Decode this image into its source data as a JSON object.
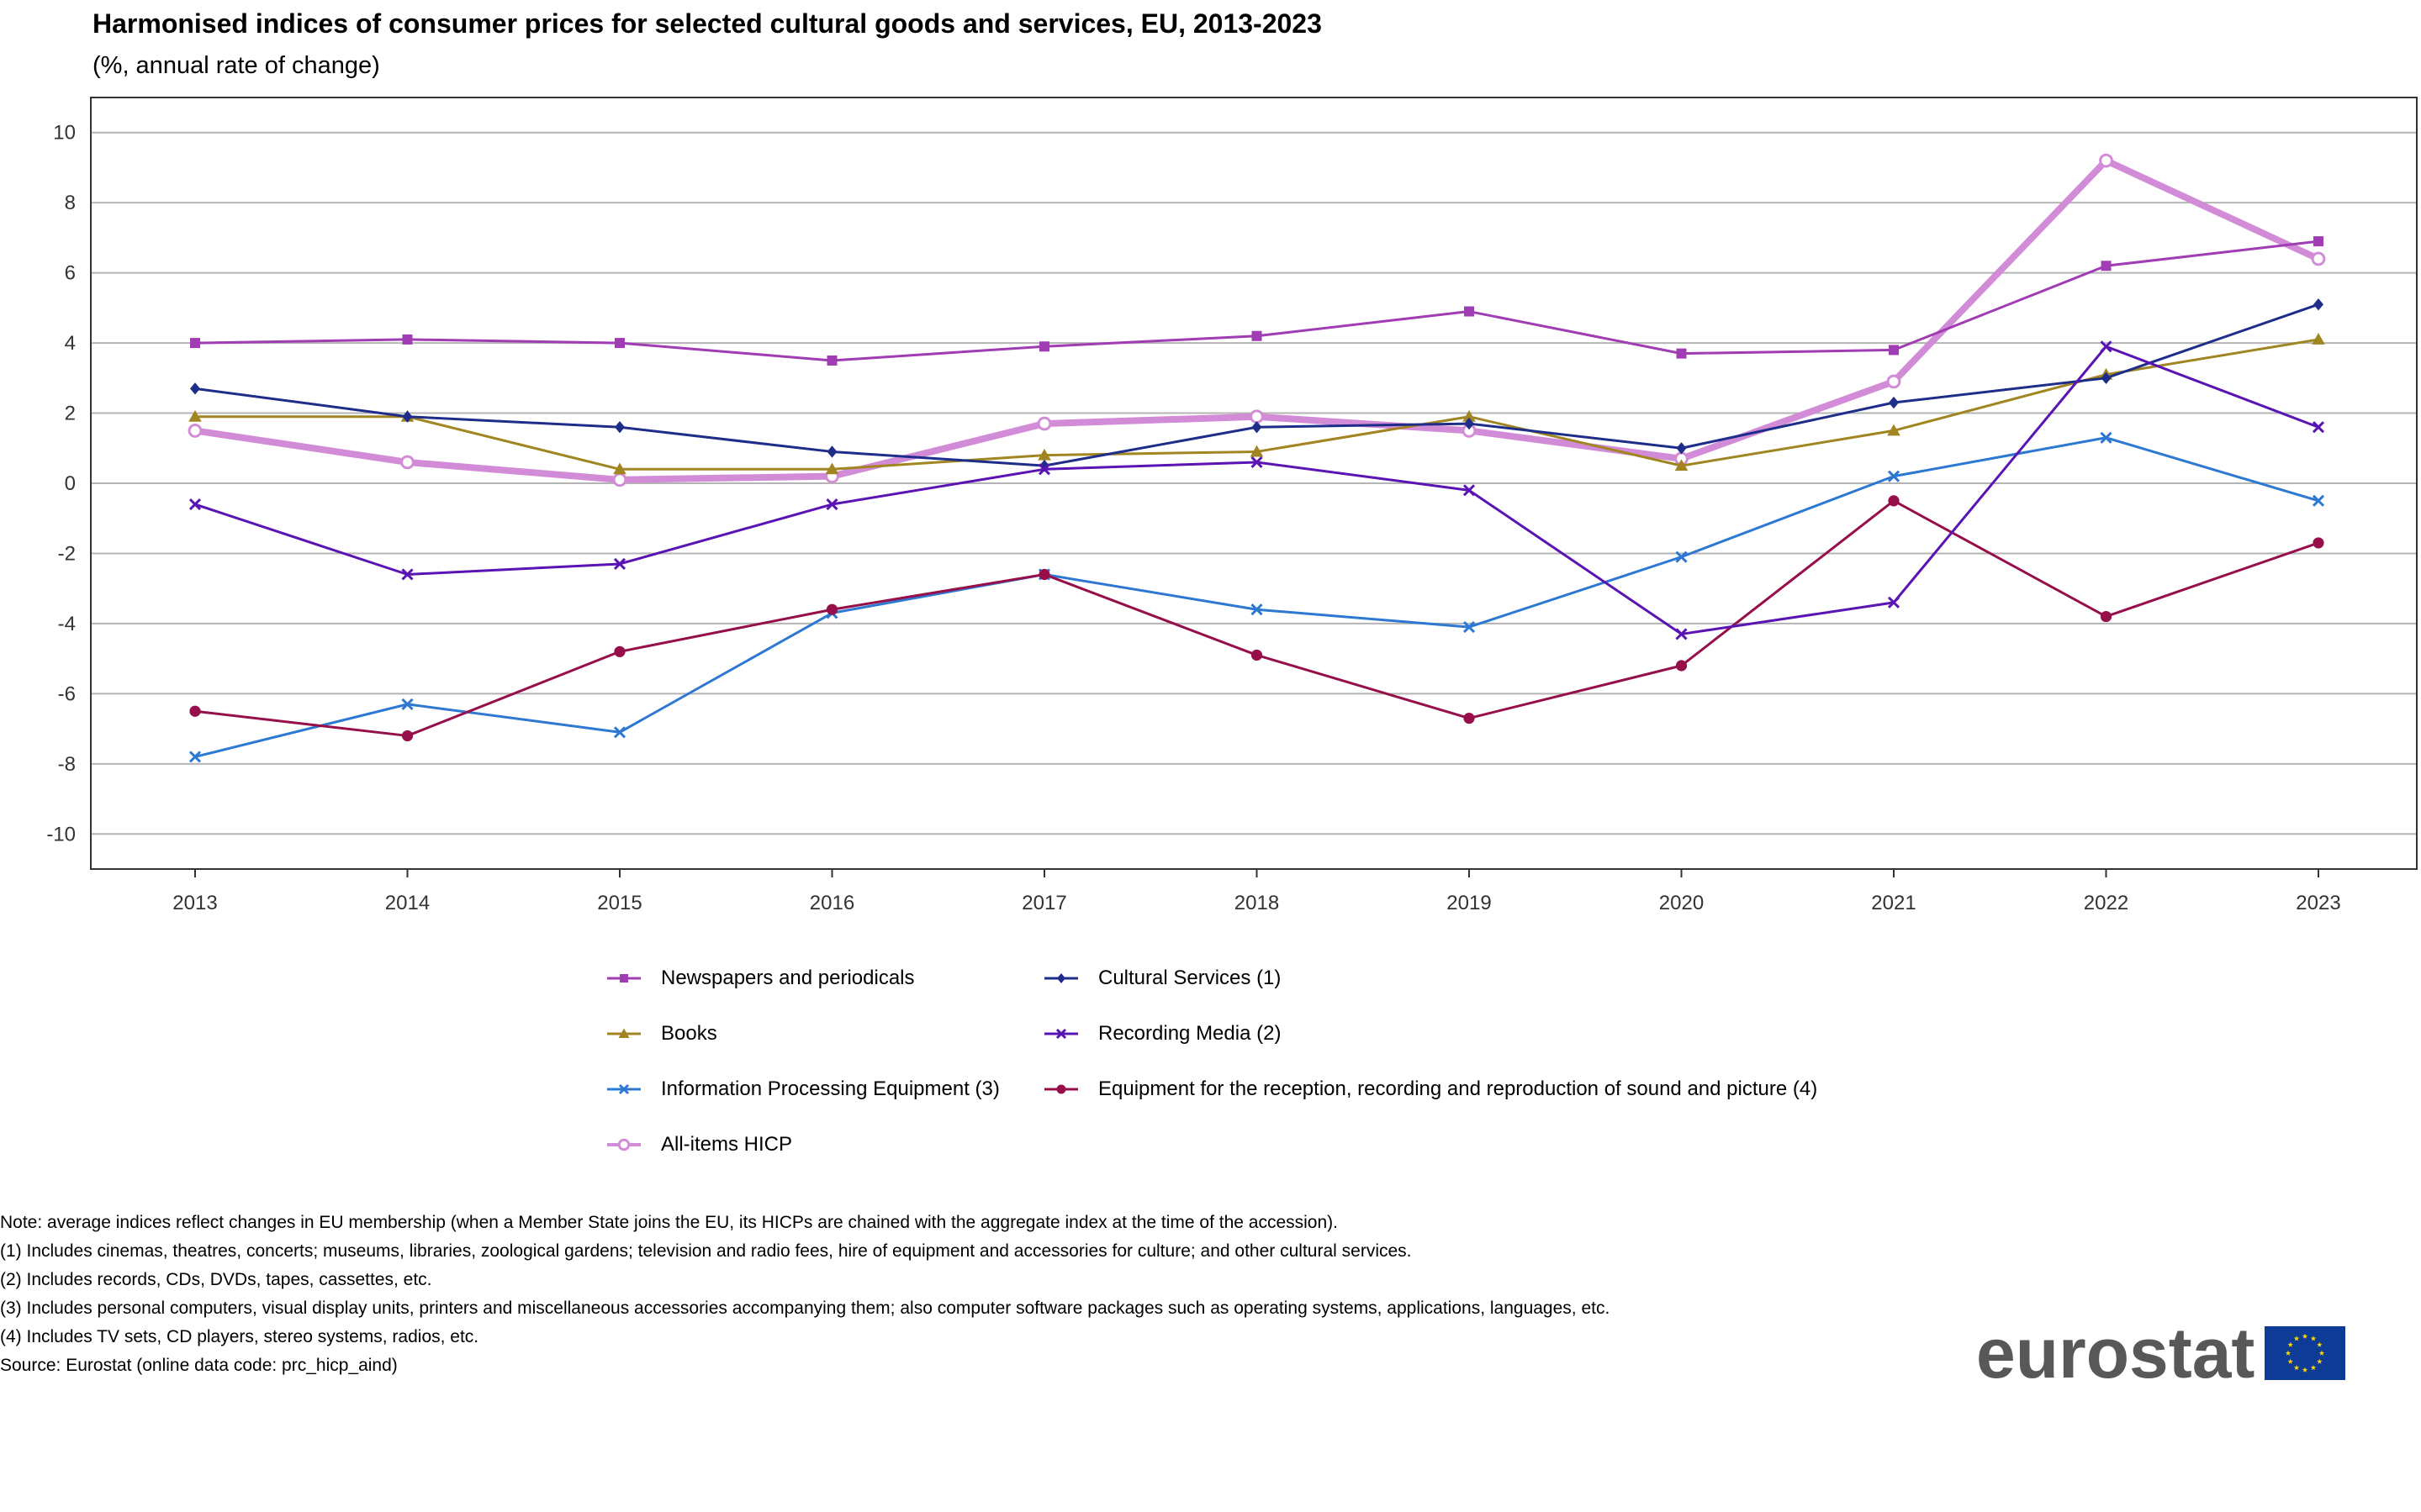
{
  "title": "Harmonised indices of consumer prices for selected cultural goods and services, EU, 2013-2023",
  "subtitle": "(%, annual rate of change)",
  "chart_data": {
    "type": "line",
    "title": "Harmonised indices of consumer prices for selected cultural goods and services, EU, 2013-2023",
    "subtitle": "(%, annual rate of change)",
    "x": [
      "2013",
      "2014",
      "2015",
      "2016",
      "2017",
      "2018",
      "2019",
      "2020",
      "2021",
      "2022",
      "2023"
    ],
    "ylim": [
      -11,
      11
    ],
    "yticks": [
      10,
      8,
      6,
      4,
      2,
      0,
      -2,
      -4,
      -6,
      -8,
      -10
    ],
    "grid": true,
    "legend_position": "bottom",
    "series": [
      {
        "name": "Newspapers and periodicals",
        "color": "#a03cb4",
        "marker": "square",
        "width": 3,
        "values": [
          4.0,
          4.1,
          4.0,
          3.5,
          3.9,
          4.2,
          4.9,
          3.7,
          3.8,
          6.2,
          6.9
        ]
      },
      {
        "name": "Cultural Services (1)",
        "color": "#1f2d8a",
        "marker": "diamond",
        "width": 3,
        "values": [
          2.7,
          1.9,
          1.6,
          0.9,
          0.5,
          1.6,
          1.7,
          1.0,
          2.3,
          3.0,
          5.1
        ]
      },
      {
        "name": "Books",
        "color": "#a08521",
        "marker": "triangle",
        "width": 3,
        "values": [
          1.9,
          1.9,
          0.4,
          0.4,
          0.8,
          0.9,
          1.9,
          0.5,
          1.5,
          3.1,
          4.1
        ]
      },
      {
        "name": "Recording Media (2)",
        "color": "#5a14b4",
        "marker": "x",
        "width": 3,
        "values": [
          -0.6,
          -2.6,
          -2.3,
          -0.6,
          0.4,
          0.6,
          -0.2,
          -4.3,
          -3.4,
          3.9,
          1.6
        ]
      },
      {
        "name": "Information Processing Equipment (3)",
        "color": "#2d78d2",
        "marker": "x",
        "width": 3,
        "values": [
          -7.8,
          -6.3,
          -7.1,
          -3.7,
          -2.6,
          -3.6,
          -4.1,
          -2.1,
          0.2,
          1.3,
          -0.5
        ]
      },
      {
        "name": "Equipment for the reception, recording and reproduction of sound and picture (4)",
        "color": "#960f4b",
        "marker": "circle",
        "width": 3,
        "values": [
          -6.5,
          -7.2,
          -4.8,
          -3.6,
          -2.6,
          -4.9,
          -6.7,
          -5.2,
          -0.5,
          -3.8,
          -1.7
        ]
      },
      {
        "name": "All-items HICP",
        "color": "#d28cd7",
        "marker": "open-circle",
        "width": 8,
        "values": [
          1.5,
          0.6,
          0.1,
          0.2,
          1.7,
          1.9,
          1.5,
          0.7,
          2.9,
          9.2,
          6.4
        ]
      }
    ]
  },
  "notes": [
    "Note: average indices reflect changes in EU membership (when a Member State joins the EU, its HICPs are chained with the aggregate index at the time of the accession).",
    "(1) Includes cinemas, theatres, concerts; museums, libraries, zoological gardens; television and radio fees, hire of equipment and accessories for culture; and other cultural services.",
    "(2) Includes records, CDs, DVDs, tapes, cassettes, etc.",
    "(3) Includes personal computers, visual display units, printers and miscellaneous accessories accompanying them; also computer software packages such as operating systems, applications, languages, etc.",
    "(4) Includes TV sets, CD players, stereo systems, radios, etc.",
    "Source: Eurostat (online data code: prc_hicp_aind)"
  ],
  "logo": {
    "text": "eurostat",
    "icon": "eu-flag-icon",
    "flag_color": "#0e3b96",
    "star_color": "#ffd700"
  }
}
